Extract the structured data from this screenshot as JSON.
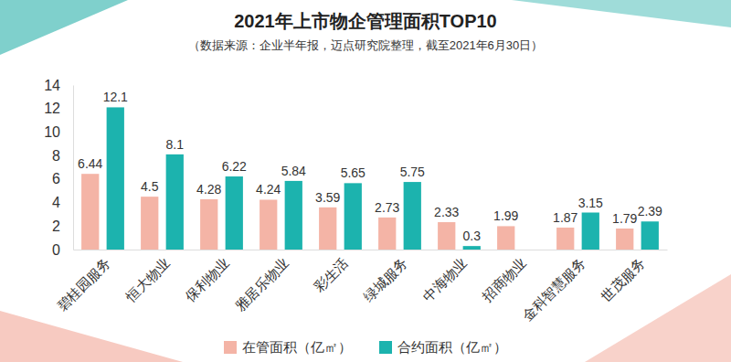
{
  "chart_data": {
    "type": "bar",
    "title": "2021年上市物企管理面积TOP10",
    "subtitle": "（数据来源：企业半年报，迈点研究院整理，截至2021年6月30日）",
    "categories": [
      "碧桂园服务",
      "恒大物业",
      "保利物业",
      "雅居乐物业",
      "彩生活",
      "绿城服务",
      "中海物业",
      "招商物业",
      "金科智慧服务",
      "世茂服务"
    ],
    "series": [
      {
        "name": "在管面积（亿㎡）",
        "color": "#f4b4a6",
        "values": [
          6.44,
          4.5,
          4.28,
          4.24,
          3.59,
          2.73,
          2.33,
          1.99,
          1.87,
          1.79
        ]
      },
      {
        "name": "合约面积（亿㎡）",
        "color": "#1cb3ae",
        "values": [
          12.1,
          8.1,
          6.22,
          5.84,
          5.65,
          5.75,
          0.3,
          null,
          3.15,
          2.39
        ]
      }
    ],
    "ylim": [
      0,
      14
    ],
    "yticks": [
      0,
      2,
      4,
      6,
      8,
      10,
      12,
      14
    ],
    "grid": false,
    "legend": "bottom",
    "data_labels": true
  }
}
